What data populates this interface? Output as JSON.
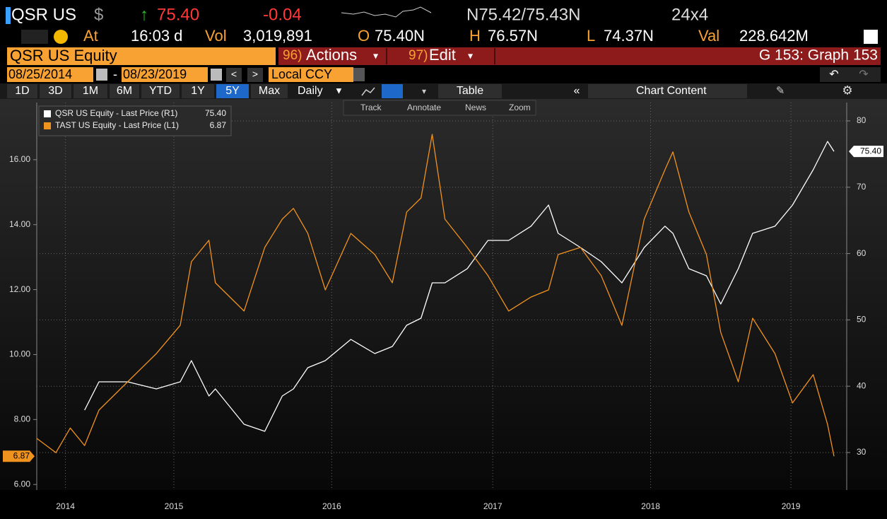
{
  "header": {
    "ticker": "QSR US",
    "currency": "$",
    "price": "75.40",
    "change": "-0.04",
    "bid_ask": "N75.42/75.43N",
    "size": "24x4",
    "stats": [
      [
        "At",
        "16:03 d"
      ],
      [
        "Vol",
        "3,019,891"
      ],
      [
        "O",
        "75.40N"
      ],
      [
        "H",
        "76.57N"
      ],
      [
        "L",
        "74.37N"
      ],
      [
        "Val",
        "228.642M"
      ]
    ],
    "security": "QSR US Equity",
    "actions_num": "96)",
    "actions": "Actions",
    "edit_num": "97)",
    "edit": "Edit",
    "graph": "G 153: Graph 153",
    "start_date": "08/25/2014",
    "dash": "-",
    "end_date": "08/23/2019",
    "ccy": "Local CCY",
    "periods": [
      "1D",
      "3D",
      "1M",
      "6M",
      "YTD",
      "1Y",
      "5Y",
      "Max"
    ],
    "active_period": 6,
    "frequency": "Daily",
    "table": "Table",
    "chart_content": "Chart Content",
    "tools": [
      "Track",
      "Annotate",
      "News",
      "Zoom"
    ]
  },
  "chart_data": {
    "type": "line",
    "x": [
      2014.64,
      2014.76,
      2014.85,
      2014.94,
      2015.03,
      2015.21,
      2015.39,
      2015.54,
      2015.61,
      2015.72,
      2015.76,
      2015.94,
      2016.07,
      2016.18,
      2016.25,
      2016.34,
      2016.45,
      2016.61,
      2016.76,
      2016.87,
      2016.96,
      2017.05,
      2017.12,
      2017.2,
      2017.34,
      2017.47,
      2017.6,
      2017.74,
      2017.85,
      2017.91,
      2018.05,
      2018.18,
      2018.31,
      2018.45,
      2018.58,
      2018.63,
      2018.73,
      2018.84,
      2018.93,
      2019.04,
      2019.13,
      2019.27,
      2019.38,
      2019.51,
      2019.6,
      2019.64
    ],
    "series": [
      {
        "name": "QSR US Equity - Last Price (R1)",
        "color": "#ffffff",
        "axis": "y2",
        "last": {
          "value": 75.4,
          "label": "75.40"
        },
        "values": [
          null,
          null,
          null,
          36.4,
          40.66,
          40.66,
          39.59,
          40.66,
          43.86,
          38.53,
          39.59,
          34.26,
          33.2,
          38.53,
          39.59,
          42.79,
          43.86,
          47.06,
          44.93,
          45.99,
          49.19,
          50.26,
          55.59,
          55.59,
          57.72,
          61.98,
          61.98,
          64.12,
          67.31,
          63.05,
          60.92,
          58.78,
          55.59,
          60.92,
          64.12,
          63.05,
          57.72,
          56.65,
          52.39,
          57.72,
          63.05,
          64.12,
          67.31,
          72.64,
          76.91,
          75.4
        ]
      },
      {
        "name": "TAST US Equity - Last Price (L1)",
        "color": "#f0921e",
        "axis": "y",
        "last": 6.87,
        "values": [
          7.42,
          6.98,
          7.74,
          7.2,
          8.29,
          9.16,
          10.03,
          10.9,
          12.86,
          13.52,
          12.21,
          11.34,
          13.3,
          14.17,
          14.5,
          13.73,
          11.99,
          13.73,
          13.08,
          12.21,
          14.39,
          14.82,
          16.78,
          14.17,
          13.3,
          12.43,
          11.34,
          11.77,
          11.99,
          13.08,
          13.3,
          12.43,
          10.9,
          14.17,
          15.69,
          16.24,
          14.39,
          13.08,
          10.68,
          9.16,
          11.12,
          10.03,
          8.51,
          9.38,
          7.85,
          6.87
        ]
      }
    ],
    "xlim": [
      2014.64,
      2019.72
    ],
    "xticks": [
      {
        "value": 2014.82,
        "label": "2014"
      },
      {
        "value": 2015.5,
        "label": "2015"
      },
      {
        "value": 2016.49,
        "label": "2016"
      },
      {
        "value": 2017.5,
        "label": "2017"
      },
      {
        "value": 2018.49,
        "label": "2018"
      },
      {
        "value": 2019.37,
        "label": "2019"
      }
    ],
    "ylim": [
      5.83,
      17.76
    ],
    "yticks": [
      {
        "value": 6,
        "label": "6.00"
      },
      {
        "value": 8,
        "label": "8.00"
      },
      {
        "value": 10,
        "label": "10.00"
      },
      {
        "value": 12,
        "label": "12.00"
      },
      {
        "value": 14,
        "label": "14.00"
      },
      {
        "value": 16,
        "label": "16.00"
      }
    ],
    "y2lim": [
      24.35,
      82.77
    ],
    "y2ticks": [
      30,
      40,
      50,
      60,
      70,
      80
    ],
    "grid": true
  }
}
